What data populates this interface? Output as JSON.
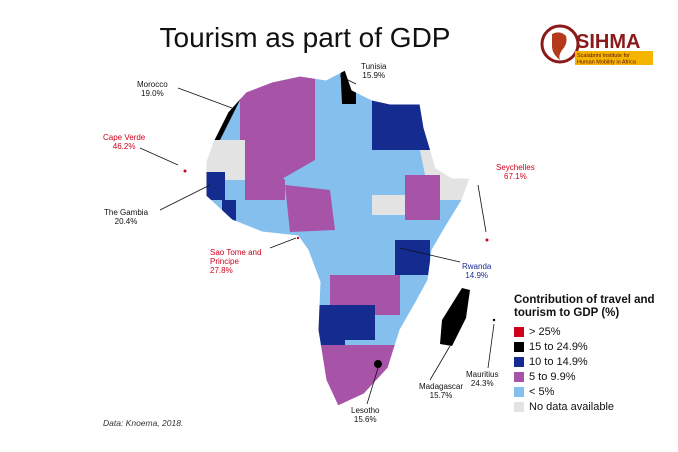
{
  "title": "Tourism as part of GDP",
  "logo": {
    "name": "SIHMA",
    "subtitle_1": "Scalabrini Institute for",
    "subtitle_2": "Human Mobility in Africa"
  },
  "labels": {
    "morocco": {
      "name": "Morocco",
      "value": "19.0%"
    },
    "tunisia": {
      "name": "Tunisia",
      "value": "15.9%"
    },
    "cape_verde": {
      "name": "Cape Verde",
      "value": "46.2%"
    },
    "seychelles": {
      "name": "Seychelles",
      "value": "67.1%"
    },
    "gambia": {
      "name": "The Gambia",
      "value": "20.4%"
    },
    "sao_tome": {
      "name_1": "Sao Tome and",
      "name_2": "Principe",
      "value": "27.8%"
    },
    "rwanda": {
      "name": "Rwanda",
      "value": "14.9%"
    },
    "mauritius": {
      "name": "Mauritius",
      "value": "24.3%"
    },
    "madagascar": {
      "name": "Madagascar",
      "value": "15.7%"
    },
    "lesotho": {
      "name": "Lesotho",
      "value": "15.6%"
    }
  },
  "legend": {
    "title_1": "Contribution of travel and",
    "title_2": "tourism to GDP (%)",
    "items": [
      {
        "label": "> 25%",
        "color": "#d0021b"
      },
      {
        "label": "15 to 24.9%",
        "color": "#000000"
      },
      {
        "label": "10 to 14.9%",
        "color": "#142b8f"
      },
      {
        "label": "5 to 9.9%",
        "color": "#a653a8"
      },
      {
        "label": "< 5%",
        "color": "#84bfee"
      },
      {
        "label": "No data available",
        "color": "#e3e3e3"
      }
    ]
  },
  "source": "Data: Knoema, 2018."
}
